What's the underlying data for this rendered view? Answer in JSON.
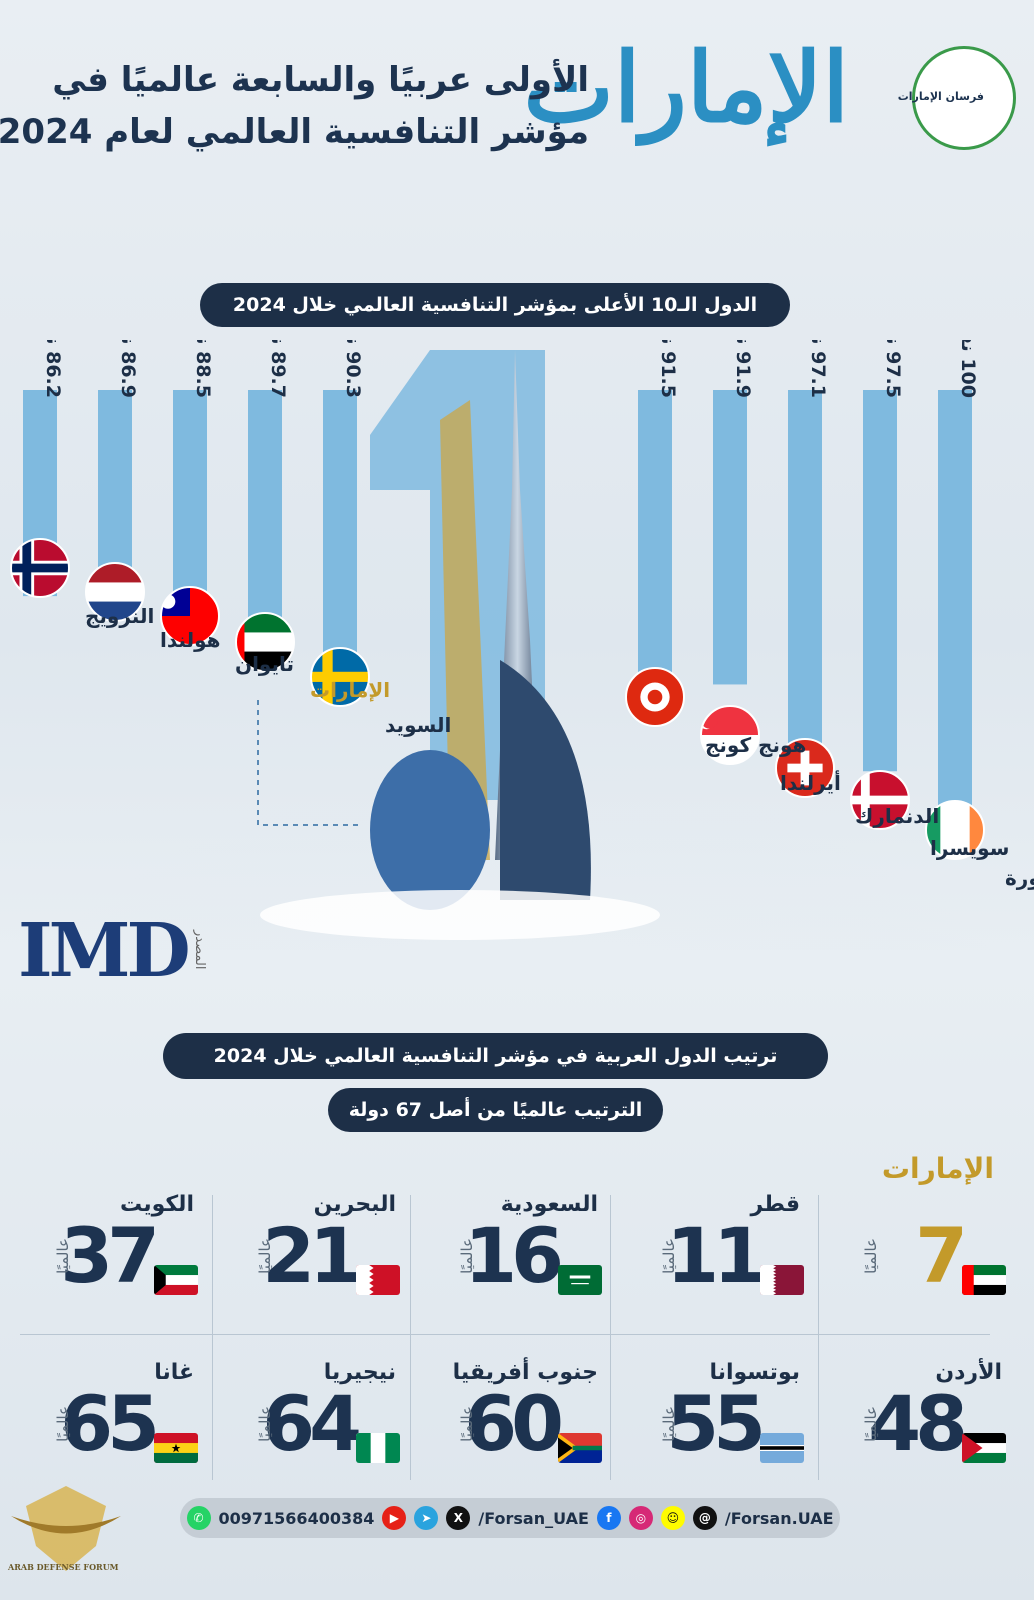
{
  "header": {
    "brand": "الإمارات",
    "line1": "الأولى عربيًا والسابعة عالميًا في",
    "line2": "مؤشر التنافسية العالمي لعام 2024",
    "logo_text": "فرسان الإمارات"
  },
  "top_banner": "الدول الـ10 الأعلى بمؤشر التنافسية العالمي خلال 2024",
  "source": {
    "label": "المصدر",
    "brand": "IMD"
  },
  "chart_data": {
    "type": "bar",
    "title": "الدول الـ10 الأعلى بمؤشر التنافسية العالمي خلال 2024",
    "unit_suffix": "نقطة",
    "categories": [
      "سنغافورة",
      "سويسرا",
      "الدنمارك",
      "أيرلندا",
      "هونج كونج",
      "السويد",
      "الإمارات",
      "تايوان",
      "هولندا",
      "النرويج"
    ],
    "values": [
      100,
      97.5,
      97.1,
      91.9,
      91.5,
      90.3,
      89.7,
      88.5,
      86.9,
      86.2
    ],
    "value_labels": [
      "100 نقطة",
      "97.5 نقطة",
      "97.1 نقطة",
      "91.9 نقطة",
      "91.5 نقطة",
      "90.3 نقطة",
      "89.7 نقطة",
      "88.5 نقطة",
      "86.9 نقطة",
      "86.2 نقطة"
    ],
    "highlight": "الإمارات",
    "bar_color": "#7fbadf",
    "highlight_color": "#c39a2a",
    "ylim": [
      0,
      100
    ]
  },
  "arab_banner": "ترتيب الدول العربية في مؤشر التنافسية العالمي خلال 2024",
  "sub_banner": "الترتيب عالميًا من أصل 67 دولة",
  "world_label": "عالميًا",
  "rankings": [
    {
      "name": "الإمارات",
      "rank": "7",
      "flag": "uae"
    },
    {
      "name": "قطر",
      "rank": "11",
      "flag": "qatar"
    },
    {
      "name": "السعودية",
      "rank": "16",
      "flag": "saudi"
    },
    {
      "name": "البحرين",
      "rank": "21",
      "flag": "bahrain"
    },
    {
      "name": "الكويت",
      "rank": "37",
      "flag": "kuwait"
    },
    {
      "name": "الأردن",
      "rank": "48",
      "flag": "jordan"
    },
    {
      "name": "بوتسوانا",
      "rank": "55",
      "flag": "botswana"
    },
    {
      "name": "جنوب أفريقيا",
      "rank": "60",
      "flag": "southafrica"
    },
    {
      "name": "نيجيريا",
      "rank": "64",
      "flag": "nigeria"
    },
    {
      "name": "غانا",
      "rank": "65",
      "flag": "ghana"
    }
  ],
  "footer": {
    "phone": "00971566400384",
    "handle1": "/Forsan_UAE",
    "handle2": "/Forsan.UAE"
  },
  "watermark": "ARAB DEFENSE FORUM"
}
